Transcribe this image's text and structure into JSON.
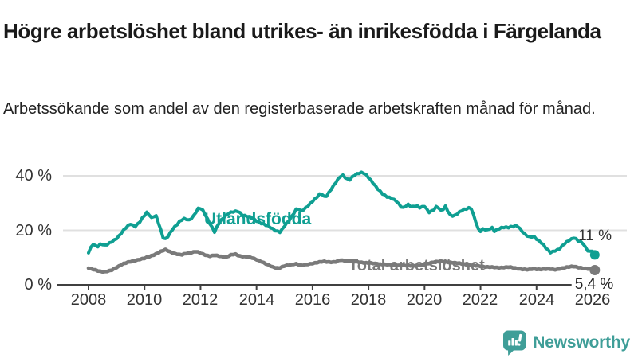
{
  "header": {
    "title": "Högre arbetslöshet bland utrikes- än inrikesfödda i Färgelanda",
    "subtitle": "Arbetssökande som andel av den registerbaserade arbetskraften månad för månad."
  },
  "colors": {
    "foreign_series": "#0f9f92",
    "total_series": "#7a7a7a",
    "grid": "#e0e0e0",
    "axis": "#404040",
    "text": "#1a1a1a",
    "axis_text": "#333333",
    "brand": "#3f9e98"
  },
  "chart_data": {
    "type": "line",
    "title": "Högre arbetslöshet bland utrikes- än inrikesfödda i Färgelanda",
    "xlabel": "",
    "ylabel": "",
    "unit": "%",
    "x_ticks": [
      2008,
      2010,
      2012,
      2014,
      2016,
      2018,
      2020,
      2022,
      2024,
      2026
    ],
    "x_tick_labels": [
      "2008",
      "2010",
      "2012",
      "2014",
      "2016",
      "2018",
      "2020",
      "2022",
      "2024",
      "2026"
    ],
    "y_ticks": [
      0,
      20,
      40
    ],
    "y_tick_labels": [
      "0 %",
      "20 %",
      "40 %"
    ],
    "ylim": [
      0,
      44
    ],
    "xlim": [
      2008,
      2026.2
    ],
    "grid": "horizontal",
    "legend_position": "inline-labels",
    "series": [
      {
        "name": "Utlandsfödda",
        "color": "#0f9f92",
        "end_label": "11 %",
        "end_value": 11,
        "points": [
          [
            2008.0,
            11.7
          ],
          [
            2008.15,
            15.0
          ],
          [
            2008.3,
            13.8
          ],
          [
            2008.45,
            15.3
          ],
          [
            2008.6,
            14.4
          ],
          [
            2008.75,
            15.2
          ],
          [
            2008.9,
            16.2
          ],
          [
            2009.05,
            17.5
          ],
          [
            2009.2,
            19.5
          ],
          [
            2009.35,
            21.0
          ],
          [
            2009.5,
            22.3
          ],
          [
            2009.65,
            21.4
          ],
          [
            2009.8,
            22.8
          ],
          [
            2009.95,
            24.8
          ],
          [
            2010.1,
            26.6
          ],
          [
            2010.25,
            24.6
          ],
          [
            2010.4,
            25.8
          ],
          [
            2010.55,
            21.0
          ],
          [
            2010.7,
            16.1
          ],
          [
            2010.85,
            18.0
          ],
          [
            2011.0,
            20.5
          ],
          [
            2011.15,
            22.0
          ],
          [
            2011.3,
            23.6
          ],
          [
            2011.45,
            24.4
          ],
          [
            2011.6,
            23.7
          ],
          [
            2011.75,
            25.2
          ],
          [
            2011.95,
            28.4
          ],
          [
            2012.1,
            27.2
          ],
          [
            2012.3,
            23.2
          ],
          [
            2012.5,
            19.3
          ],
          [
            2012.65,
            22.5
          ],
          [
            2012.8,
            24.6
          ],
          [
            2013.0,
            26.2
          ],
          [
            2013.2,
            26.8
          ],
          [
            2013.35,
            27.1
          ],
          [
            2013.5,
            25.6
          ],
          [
            2013.7,
            25.0
          ],
          [
            2013.9,
            24.1
          ],
          [
            2014.1,
            23.0
          ],
          [
            2014.3,
            22.0
          ],
          [
            2014.5,
            21.0
          ],
          [
            2014.7,
            19.9
          ],
          [
            2014.85,
            19.3
          ],
          [
            2015.0,
            21.5
          ],
          [
            2015.2,
            24.2
          ],
          [
            2015.45,
            28.3
          ],
          [
            2015.6,
            26.8
          ],
          [
            2015.8,
            28.6
          ],
          [
            2015.95,
            30.3
          ],
          [
            2016.1,
            31.6
          ],
          [
            2016.3,
            33.6
          ],
          [
            2016.45,
            32.0
          ],
          [
            2016.6,
            34.2
          ],
          [
            2016.75,
            36.3
          ],
          [
            2016.9,
            38.5
          ],
          [
            2017.05,
            40.5
          ],
          [
            2017.2,
            39.2
          ],
          [
            2017.3,
            38.3
          ],
          [
            2017.45,
            39.8
          ],
          [
            2017.65,
            41.0
          ],
          [
            2017.8,
            41.4
          ],
          [
            2017.95,
            40.0
          ],
          [
            2018.1,
            38.0
          ],
          [
            2018.25,
            36.2
          ],
          [
            2018.4,
            34.5
          ],
          [
            2018.55,
            33.0
          ],
          [
            2018.7,
            32.0
          ],
          [
            2018.85,
            31.6
          ],
          [
            2019.0,
            30.8
          ],
          [
            2019.15,
            28.8
          ],
          [
            2019.25,
            28.2
          ],
          [
            2019.4,
            29.4
          ],
          [
            2019.55,
            28.6
          ],
          [
            2019.7,
            29.2
          ],
          [
            2019.85,
            28.2
          ],
          [
            2020.0,
            28.8
          ],
          [
            2020.15,
            26.6
          ],
          [
            2020.3,
            27.4
          ],
          [
            2020.45,
            29.0
          ],
          [
            2020.6,
            26.8
          ],
          [
            2020.75,
            28.8
          ],
          [
            2020.9,
            25.8
          ],
          [
            2021.05,
            25.2
          ],
          [
            2021.2,
            26.2
          ],
          [
            2021.35,
            27.4
          ],
          [
            2021.5,
            28.0
          ],
          [
            2021.65,
            28.5
          ],
          [
            2021.8,
            24.0
          ],
          [
            2021.95,
            19.3
          ],
          [
            2022.1,
            20.7
          ],
          [
            2022.25,
            20.1
          ],
          [
            2022.4,
            21.0
          ],
          [
            2022.5,
            19.6
          ],
          [
            2022.65,
            20.6
          ],
          [
            2022.8,
            21.3
          ],
          [
            2023.0,
            21.0
          ],
          [
            2023.15,
            21.3
          ],
          [
            2023.3,
            21.9
          ],
          [
            2023.45,
            20.2
          ],
          [
            2023.6,
            18.3
          ],
          [
            2023.75,
            17.4
          ],
          [
            2023.9,
            17.8
          ],
          [
            2024.05,
            16.5
          ],
          [
            2024.2,
            15.2
          ],
          [
            2024.35,
            13.2
          ],
          [
            2024.5,
            11.9
          ],
          [
            2024.65,
            12.6
          ],
          [
            2024.8,
            13.0
          ],
          [
            2025.0,
            15.0
          ],
          [
            2025.15,
            16.3
          ],
          [
            2025.35,
            17.5
          ],
          [
            2025.5,
            15.9
          ],
          [
            2025.65,
            15.3
          ],
          [
            2025.8,
            12.9
          ],
          [
            2025.9,
            12.2
          ],
          [
            2026.0,
            12.6
          ],
          [
            2026.08,
            11.0
          ]
        ]
      },
      {
        "name": "Total arbetslöshet",
        "color": "#7a7a7a",
        "end_label": "5,4 %",
        "end_value": 5.4,
        "points": [
          [
            2008.0,
            6.1
          ],
          [
            2008.2,
            5.5
          ],
          [
            2008.4,
            5.0
          ],
          [
            2008.6,
            4.8
          ],
          [
            2008.8,
            5.2
          ],
          [
            2009.0,
            6.4
          ],
          [
            2009.2,
            7.6
          ],
          [
            2009.4,
            8.2
          ],
          [
            2009.6,
            8.8
          ],
          [
            2009.8,
            9.3
          ],
          [
            2010.0,
            9.7
          ],
          [
            2010.2,
            10.5
          ],
          [
            2010.4,
            11.3
          ],
          [
            2010.6,
            12.3
          ],
          [
            2010.75,
            12.9
          ],
          [
            2010.9,
            12.2
          ],
          [
            2011.1,
            11.4
          ],
          [
            2011.3,
            10.9
          ],
          [
            2011.5,
            11.6
          ],
          [
            2011.7,
            11.9
          ],
          [
            2011.85,
            12.2
          ],
          [
            2012.0,
            11.6
          ],
          [
            2012.2,
            10.9
          ],
          [
            2012.35,
            10.5
          ],
          [
            2012.5,
            10.8
          ],
          [
            2012.7,
            10.5
          ],
          [
            2012.9,
            10.1
          ],
          [
            2013.1,
            11.0
          ],
          [
            2013.25,
            11.2
          ],
          [
            2013.4,
            10.6
          ],
          [
            2013.6,
            10.3
          ],
          [
            2013.8,
            10.0
          ],
          [
            2014.0,
            9.3
          ],
          [
            2014.2,
            8.4
          ],
          [
            2014.4,
            7.3
          ],
          [
            2014.6,
            6.5
          ],
          [
            2014.8,
            6.1
          ],
          [
            2015.0,
            6.9
          ],
          [
            2015.2,
            7.3
          ],
          [
            2015.4,
            7.8
          ],
          [
            2015.6,
            7.0
          ],
          [
            2015.8,
            7.5
          ],
          [
            2016.0,
            7.9
          ],
          [
            2016.2,
            8.2
          ],
          [
            2016.4,
            8.6
          ],
          [
            2016.6,
            8.4
          ],
          [
            2016.8,
            8.3
          ],
          [
            2017.0,
            9.1
          ],
          [
            2017.2,
            8.8
          ],
          [
            2017.4,
            8.6
          ],
          [
            2017.7,
            8.3
          ],
          [
            2018.0,
            8.0
          ],
          [
            2018.4,
            7.6
          ],
          [
            2018.8,
            7.3
          ],
          [
            2019.2,
            7.1
          ],
          [
            2019.6,
            7.0
          ],
          [
            2020.0,
            7.3
          ],
          [
            2020.3,
            8.4
          ],
          [
            2020.6,
            8.6
          ],
          [
            2021.0,
            8.2
          ],
          [
            2021.4,
            7.6
          ],
          [
            2021.8,
            7.0
          ],
          [
            2022.2,
            6.6
          ],
          [
            2022.6,
            6.3
          ],
          [
            2023.0,
            6.5
          ],
          [
            2023.2,
            6.2
          ],
          [
            2023.45,
            5.8
          ],
          [
            2023.7,
            5.5
          ],
          [
            2023.9,
            5.9
          ],
          [
            2024.1,
            5.7
          ],
          [
            2024.3,
            5.7
          ],
          [
            2024.5,
            5.8
          ],
          [
            2024.7,
            5.6
          ],
          [
            2024.9,
            6.0
          ],
          [
            2025.1,
            6.5
          ],
          [
            2025.3,
            6.9
          ],
          [
            2025.5,
            6.3
          ],
          [
            2025.7,
            6.0
          ],
          [
            2025.9,
            5.9
          ],
          [
            2026.08,
            5.4
          ]
        ]
      }
    ]
  },
  "footer": {
    "brand": "Newsworthy"
  }
}
